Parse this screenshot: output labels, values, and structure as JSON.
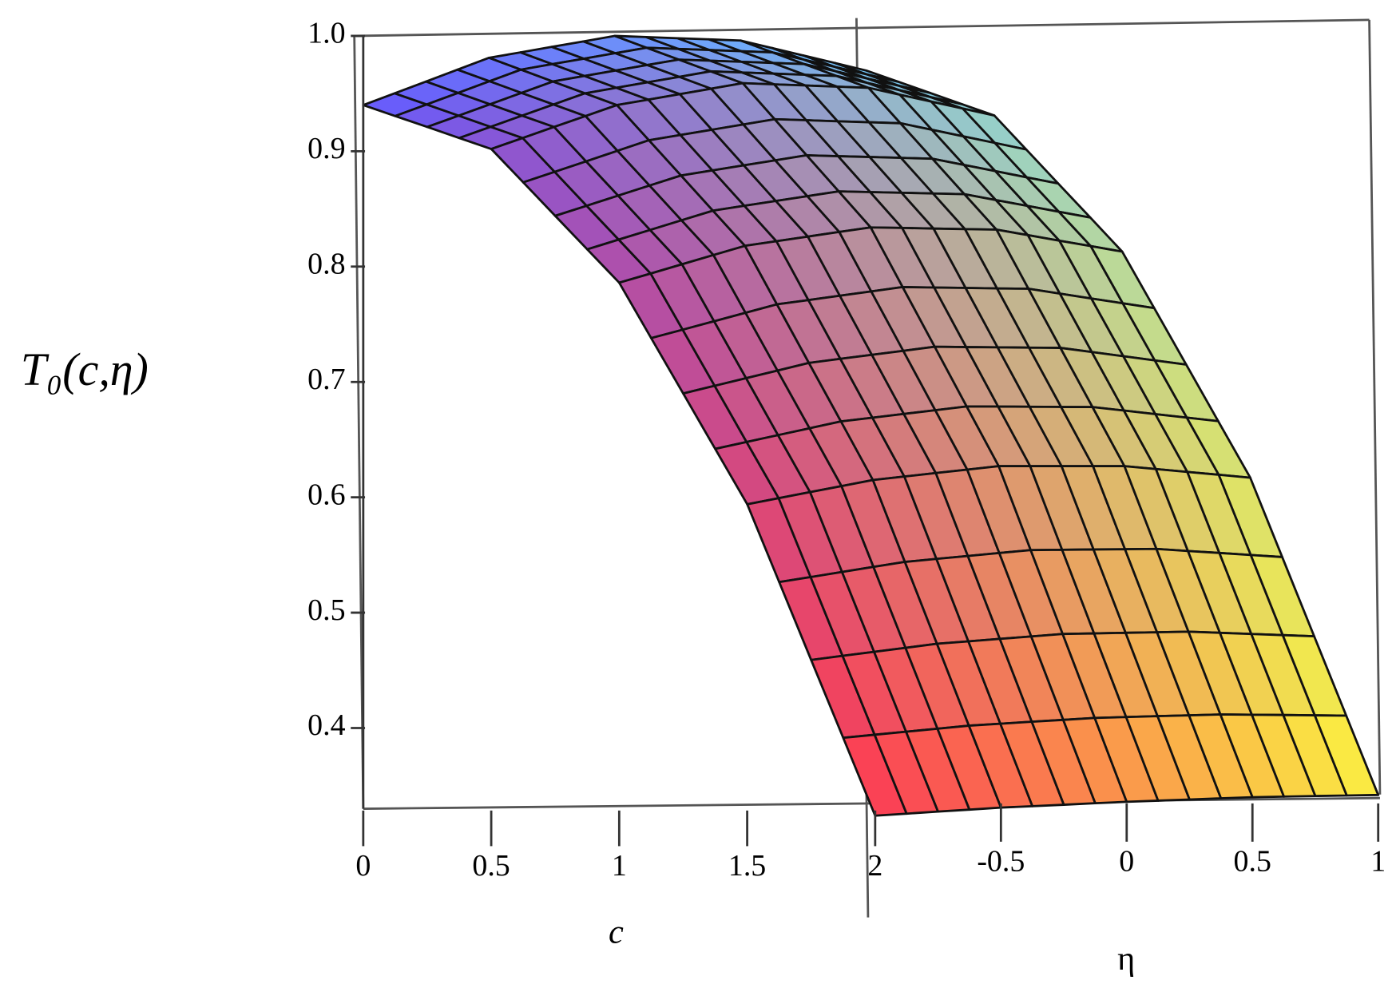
{
  "chart_data": {
    "type": "surface",
    "z_label": "T₀(c,η)",
    "x_label": "c",
    "y_label": "η",
    "x": [
      0,
      0.5,
      1,
      1.5,
      2
    ],
    "y": [
      -1,
      -0.5,
      0,
      0.5,
      1
    ],
    "z": [
      [
        0.94,
        0.981,
        1.0,
        0.996,
        0.97
      ],
      [
        0.902,
        0.94,
        0.959,
        0.955,
        0.931
      ],
      [
        0.786,
        0.818,
        0.834,
        0.832,
        0.813
      ],
      [
        0.594,
        0.615,
        0.627,
        0.627,
        0.617
      ],
      [
        0.324,
        0.331,
        0.336,
        0.34,
        0.342
      ]
    ],
    "xlim": [
      0,
      2
    ],
    "ylim": [
      -1,
      1
    ],
    "zlim": [
      0.33,
      1.0
    ],
    "xticks": [
      0,
      0.5,
      1,
      1.5,
      2
    ],
    "yticks": [
      -0.5,
      0,
      0.5,
      1
    ],
    "zticks": [
      0.4,
      0.5,
      0.6,
      0.7,
      0.8,
      0.9,
      {
        "value": 1,
        "label": "1.0"
      }
    ],
    "colors": [
      "#645aff",
      "#6ec8ff",
      "#ff3c50",
      "#fff03c"
    ],
    "mesh_color": "#111111"
  }
}
